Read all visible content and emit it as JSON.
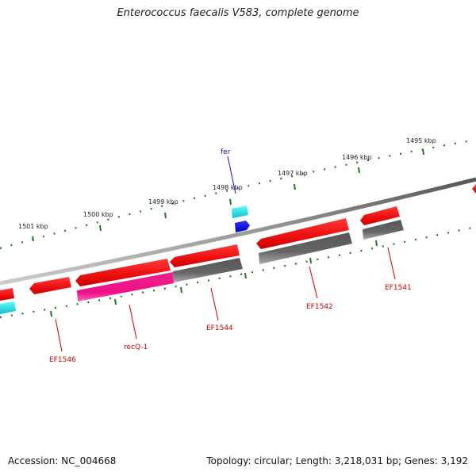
{
  "title": "Enterococcus faecalis V583, complete genome",
  "footer": {
    "accession": "Accession: NC_004668",
    "topology": "Topology: circular; Length: 3,218,031 bp; Genes: 3,192"
  },
  "ticks": [
    "1495 kbp",
    "1496 kbp",
    "1497 kbp",
    "1498 kbp",
    "1499 kbp",
    "1500 kbp",
    "1501 kbp"
  ],
  "gene_labels": {
    "fer": "fer",
    "ef1541": "EF1541",
    "ef1542": "EF1542",
    "ef1544": "EF1544",
    "recq1": "recQ-1",
    "ef1546": "EF1546"
  },
  "colors": {
    "forward_gene": "#ee1111",
    "reverse_gene_gray": "#666666",
    "recq_gene": "#ee1188",
    "cyan_feature": "#22dddd",
    "blue_feature": "#1111ee",
    "label_red": "#cc0000",
    "label_blue": "#1111aa",
    "tick_green": "#227722",
    "backbone": "#888888"
  }
}
